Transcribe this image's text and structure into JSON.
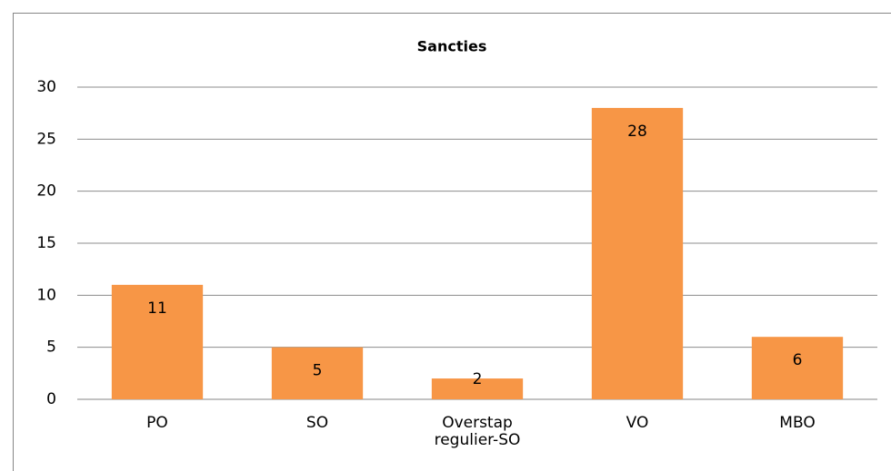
{
  "chart_data": {
    "type": "bar",
    "title": "Sancties",
    "categories": [
      "PO",
      "SO",
      "Overstap regulier-SO",
      "VO",
      "MBO"
    ],
    "values": [
      11,
      5,
      2,
      28,
      6
    ],
    "color": "#f79646",
    "ylim": [
      0,
      30
    ],
    "yticks": [
      0,
      5,
      10,
      15,
      20,
      25,
      30
    ],
    "grid": true
  }
}
